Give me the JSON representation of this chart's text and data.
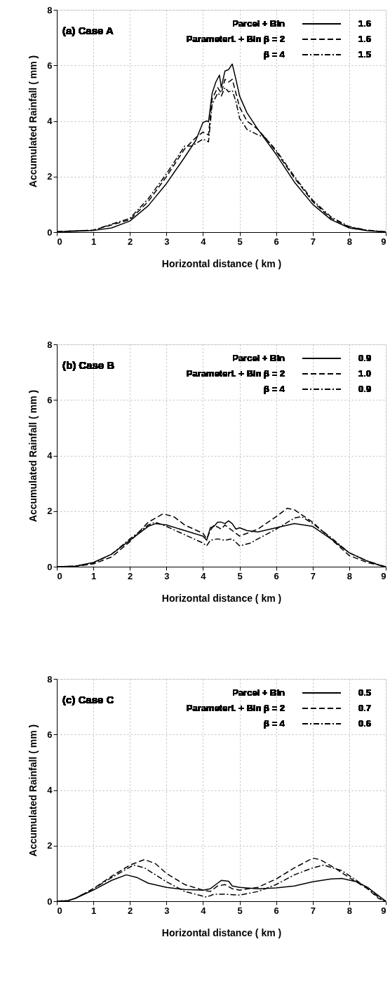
{
  "chart_data": [
    {
      "type": "line",
      "title": "(a)  Case A",
      "xlabel": "Horizontal distance ( km )",
      "ylabel": "Accumulated Rainfall ( mm )",
      "xlim": [
        0,
        9
      ],
      "ylim": [
        0,
        8
      ],
      "xticks": [
        0,
        1,
        2,
        3,
        4,
        5,
        6,
        7,
        8,
        9
      ],
      "yticks": [
        0,
        2,
        4,
        6,
        8
      ],
      "grid": true,
      "legend": "top right",
      "marker": "none",
      "annotations": [
        "1.6",
        "1.6",
        "1.5"
      ],
      "series": [
        {
          "name": "Parcel  + Bin",
          "color": "#000000",
          "line_style": "solid",
          "x": [
            0,
            0.5,
            1,
            1.5,
            2,
            2.5,
            3,
            3.5,
            3.8,
            4.0,
            4.1,
            4.15,
            4.25,
            4.35,
            4.45,
            4.5,
            4.6,
            4.7,
            4.8,
            4.9,
            5.0,
            5.2,
            5.5,
            6,
            6.5,
            7,
            7.5,
            8,
            8.5,
            9
          ],
          "values": [
            0.02,
            0.03,
            0.06,
            0.15,
            0.4,
            0.95,
            1.75,
            2.7,
            3.3,
            3.95,
            4.0,
            3.97,
            5.0,
            5.4,
            5.65,
            5.2,
            5.8,
            5.85,
            6.05,
            5.5,
            4.9,
            4.3,
            3.7,
            2.8,
            1.8,
            1.0,
            0.45,
            0.15,
            0.05,
            0.01
          ]
        },
        {
          "name": "Parameteri. + Bin  β = 2",
          "color": "#000000",
          "line_style": "dashed",
          "x": [
            0,
            1,
            2,
            2.5,
            3,
            3.5,
            3.8,
            4.0,
            4.15,
            4.25,
            4.4,
            4.5,
            4.6,
            4.7,
            4.8,
            4.9,
            5.0,
            5.2,
            5.5,
            5.7,
            6,
            6.5,
            7,
            7.5,
            8,
            8.5,
            9
          ],
          "values": [
            0.02,
            0.07,
            0.45,
            1.1,
            2.0,
            3.0,
            3.4,
            3.6,
            3.5,
            4.8,
            5.2,
            5.0,
            5.5,
            5.4,
            5.5,
            5.0,
            4.5,
            4.0,
            3.7,
            3.4,
            2.9,
            1.95,
            1.1,
            0.5,
            0.18,
            0.06,
            0.01
          ]
        },
        {
          "name": "β = 4",
          "color": "#000000",
          "line_style": "dashdot",
          "x": [
            0,
            1,
            2,
            2.5,
            3,
            3.5,
            3.7,
            4.0,
            4.15,
            4.25,
            4.4,
            4.5,
            4.6,
            4.7,
            4.8,
            4.9,
            5.0,
            5.2,
            5.5,
            5.7,
            6,
            6.5,
            7,
            7.5,
            8,
            8.5,
            9
          ],
          "values": [
            0.02,
            0.07,
            0.5,
            1.2,
            2.1,
            3.1,
            3.1,
            3.35,
            3.25,
            4.6,
            5.0,
            4.9,
            5.2,
            5.05,
            5.1,
            4.7,
            4.1,
            3.7,
            3.5,
            3.4,
            2.95,
            2.0,
            1.15,
            0.55,
            0.2,
            0.07,
            0.01
          ]
        }
      ]
    },
    {
      "type": "line",
      "title": "(b)  Case B",
      "xlabel": "Horizontal distance ( km )",
      "ylabel": "Accumulated Rainfall ( mm )",
      "xlim": [
        0,
        9
      ],
      "ylim": [
        0,
        8
      ],
      "xticks": [
        0,
        1,
        2,
        3,
        4,
        5,
        6,
        7,
        8,
        9
      ],
      "yticks": [
        0,
        2,
        4,
        6,
        8
      ],
      "grid": true,
      "legend": "top right",
      "marker": "none",
      "annotations": [
        "0.9",
        "1.0",
        "0.9"
      ],
      "series": [
        {
          "name": "Parcel  + Bin",
          "color": "#000000",
          "line_style": "solid",
          "x": [
            0,
            0.5,
            1,
            1.5,
            2,
            2.5,
            2.7,
            3,
            3.5,
            4,
            4.1,
            4.2,
            4.3,
            4.4,
            4.5,
            4.6,
            4.7,
            4.8,
            4.9,
            5.0,
            5.2,
            5.5,
            6,
            6.5,
            7,
            7.5,
            8,
            8.5,
            8.9,
            9
          ],
          "values": [
            0,
            0.02,
            0.15,
            0.45,
            0.95,
            1.45,
            1.55,
            1.5,
            1.3,
            1.1,
            0.95,
            1.4,
            1.45,
            1.6,
            1.6,
            1.55,
            1.65,
            1.55,
            1.35,
            1.4,
            1.3,
            1.25,
            1.4,
            1.55,
            1.45,
            1.0,
            0.5,
            0.2,
            0.02,
            0
          ]
        },
        {
          "name": "Parameteri. + Bin  β = 2",
          "color": "#000000",
          "line_style": "dashed",
          "x": [
            0,
            0.5,
            1,
            1.5,
            2,
            2.5,
            2.9,
            3.2,
            3.5,
            4,
            4.1,
            4.2,
            4.3,
            4.5,
            4.6,
            4.8,
            5,
            5.2,
            5.5,
            6,
            6.3,
            6.5,
            7,
            7.5,
            8,
            8.5,
            9
          ],
          "values": [
            0,
            0.01,
            0.1,
            0.35,
            0.9,
            1.6,
            1.9,
            1.8,
            1.5,
            1.2,
            1.0,
            1.3,
            1.5,
            1.35,
            1.5,
            1.3,
            1.1,
            1.2,
            1.35,
            1.8,
            2.1,
            2.05,
            1.6,
            1.0,
            0.4,
            0.15,
            0
          ]
        },
        {
          "name": "β = 4",
          "color": "#000000",
          "line_style": "dashdot",
          "x": [
            0,
            0.5,
            1,
            1.5,
            2,
            2.5,
            2.7,
            3,
            3.5,
            4,
            4.1,
            4.2,
            4.4,
            4.6,
            4.8,
            5.0,
            5.3,
            5.5,
            6,
            6.5,
            6.7,
            7,
            7.5,
            8,
            8.5,
            9
          ],
          "values": [
            0,
            0.02,
            0.13,
            0.45,
            1.0,
            1.5,
            1.6,
            1.45,
            1.15,
            0.85,
            0.75,
            0.95,
            1.0,
            0.95,
            1.0,
            0.75,
            0.85,
            1.0,
            1.35,
            1.75,
            1.8,
            1.55,
            1.05,
            0.5,
            0.2,
            0
          ]
        }
      ]
    },
    {
      "type": "line",
      "title": "(c)  Case C",
      "xlabel": "Horizontal distance ( km )",
      "ylabel": "Accumulated Rainfall ( mm )",
      "xlim": [
        0,
        9
      ],
      "ylim": [
        0,
        8
      ],
      "xticks": [
        0,
        1,
        2,
        3,
        4,
        5,
        6,
        7,
        8,
        9
      ],
      "yticks": [
        0,
        2,
        4,
        6,
        8
      ],
      "grid": true,
      "legend": "top right",
      "marker": "none",
      "annotations": [
        "0.5",
        "0.7",
        "0.6"
      ],
      "series": [
        {
          "name": "Parcel  + Bin",
          "color": "#000000",
          "line_style": "solid",
          "x": [
            0,
            0.3,
            0.5,
            1,
            1.5,
            1.9,
            2.2,
            2.5,
            3,
            3.5,
            4,
            4.2,
            4.4,
            4.5,
            4.7,
            4.8,
            5,
            5.5,
            6,
            6.5,
            7,
            7.5,
            7.8,
            8.2,
            8.5,
            8.8,
            9
          ],
          "values": [
            0,
            0.02,
            0.1,
            0.4,
            0.75,
            0.95,
            0.85,
            0.65,
            0.5,
            0.42,
            0.4,
            0.45,
            0.65,
            0.75,
            0.72,
            0.55,
            0.5,
            0.45,
            0.48,
            0.55,
            0.7,
            0.8,
            0.82,
            0.7,
            0.5,
            0.2,
            0
          ]
        },
        {
          "name": "Parameteri. + Bin  β = 2",
          "color": "#000000",
          "line_style": "dashed",
          "x": [
            0,
            0.3,
            0.5,
            1,
            1.5,
            2,
            2.4,
            2.7,
            3,
            3.5,
            4,
            4.2,
            4.4,
            4.6,
            4.8,
            5,
            5.5,
            6,
            6.5,
            7,
            7.2,
            7.6,
            8,
            8.5,
            8.8,
            9
          ],
          "values": [
            0,
            0.02,
            0.1,
            0.45,
            0.9,
            1.3,
            1.5,
            1.35,
            1.0,
            0.6,
            0.4,
            0.35,
            0.55,
            0.6,
            0.45,
            0.4,
            0.5,
            0.8,
            1.2,
            1.55,
            1.5,
            1.2,
            0.85,
            0.45,
            0.1,
            0
          ]
        },
        {
          "name": "β = 4",
          "color": "#000000",
          "line_style": "dashdot",
          "x": [
            0,
            0.3,
            0.5,
            1,
            1.5,
            2.1,
            2.4,
            3,
            3.5,
            4,
            4.1,
            4.3,
            4.6,
            5,
            5.5,
            6,
            6.5,
            7,
            7.3,
            7.8,
            8.2,
            8.6,
            8.9,
            9
          ],
          "values": [
            0,
            0.02,
            0.1,
            0.45,
            0.85,
            1.3,
            1.2,
            0.7,
            0.35,
            0.18,
            0.15,
            0.25,
            0.25,
            0.22,
            0.35,
            0.6,
            0.95,
            1.2,
            1.3,
            1.1,
            0.75,
            0.35,
            0.05,
            0
          ]
        }
      ]
    }
  ]
}
